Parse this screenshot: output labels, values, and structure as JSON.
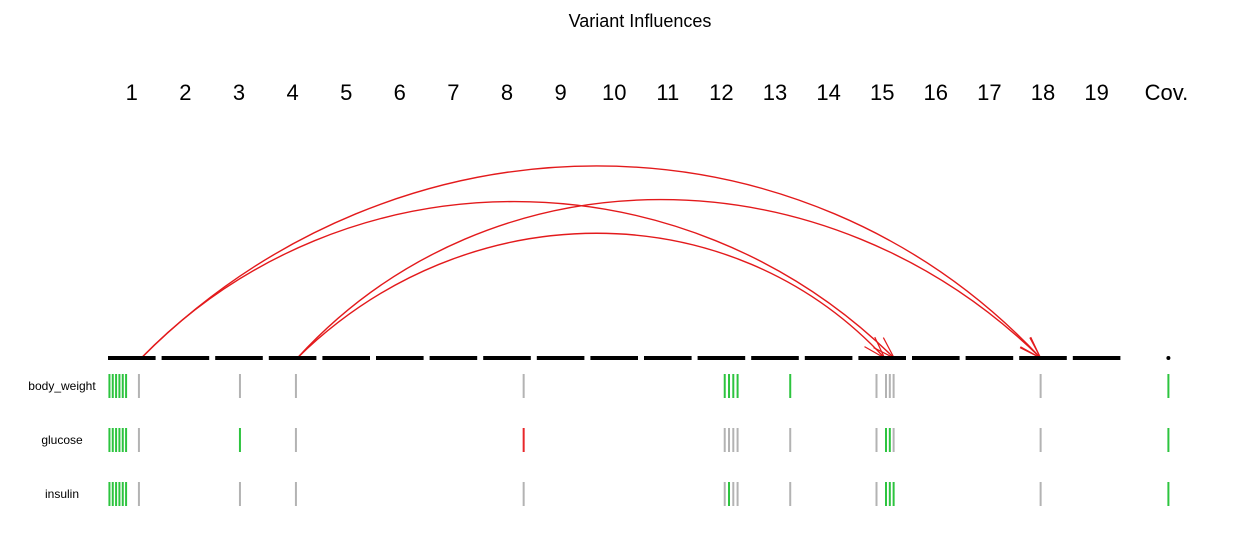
{
  "chart_data": {
    "type": "variant_influence_map",
    "title": "Variant Influences",
    "chromosomes": [
      "1",
      "2",
      "3",
      "4",
      "5",
      "6",
      "7",
      "8",
      "9",
      "10",
      "11",
      "12",
      "13",
      "14",
      "15",
      "16",
      "17",
      "18",
      "19",
      "Cov."
    ],
    "traits": [
      "body_weight",
      "glucose",
      "insulin"
    ],
    "colors": {
      "positive": "#2dc43f",
      "negative": "#e8262a",
      "neutral": "#b3b3b3",
      "arc": "#e31a1c",
      "axis": "#000000"
    },
    "legend": "none",
    "grid": false,
    "markers": [
      {
        "chr": "1",
        "pos": 0.03,
        "effects": [
          "positive",
          "positive",
          "positive"
        ]
      },
      {
        "chr": "1",
        "pos": 0.1,
        "effects": [
          "positive",
          "positive",
          "positive"
        ]
      },
      {
        "chr": "1",
        "pos": 0.17,
        "effects": [
          "positive",
          "positive",
          "positive"
        ]
      },
      {
        "chr": "1",
        "pos": 0.24,
        "effects": [
          "positive",
          "positive",
          "positive"
        ]
      },
      {
        "chr": "1",
        "pos": 0.31,
        "effects": [
          "positive",
          "positive",
          "positive"
        ]
      },
      {
        "chr": "1",
        "pos": 0.38,
        "effects": [
          "positive",
          "positive",
          "positive"
        ]
      },
      {
        "chr": "1",
        "pos": 0.65,
        "effects": [
          "neutral",
          "neutral",
          "neutral"
        ]
      },
      {
        "chr": "3",
        "pos": 0.52,
        "effects": [
          "neutral",
          "positive",
          "neutral"
        ]
      },
      {
        "chr": "4",
        "pos": 0.57,
        "effects": [
          "neutral",
          "neutral",
          "neutral"
        ]
      },
      {
        "chr": "8",
        "pos": 0.85,
        "effects": [
          "neutral",
          "negative",
          "neutral"
        ]
      },
      {
        "chr": "12",
        "pos": 0.57,
        "effects": [
          "positive",
          "neutral",
          "neutral"
        ]
      },
      {
        "chr": "12",
        "pos": 0.66,
        "effects": [
          "positive",
          "neutral",
          "positive"
        ]
      },
      {
        "chr": "12",
        "pos": 0.75,
        "effects": [
          "positive",
          "neutral",
          "neutral"
        ]
      },
      {
        "chr": "12",
        "pos": 0.84,
        "effects": [
          "positive",
          "neutral",
          "neutral"
        ]
      },
      {
        "chr": "13",
        "pos": 0.82,
        "effects": [
          "positive",
          "neutral",
          "neutral"
        ]
      },
      {
        "chr": "15",
        "pos": 0.38,
        "effects": [
          "neutral",
          "neutral",
          "neutral"
        ]
      },
      {
        "chr": "15",
        "pos": 0.58,
        "effects": [
          "neutral",
          "positive",
          "positive"
        ]
      },
      {
        "chr": "15",
        "pos": 0.66,
        "effects": [
          "neutral",
          "positive",
          "positive"
        ]
      },
      {
        "chr": "15",
        "pos": 0.74,
        "effects": [
          "neutral",
          "neutral",
          "positive"
        ]
      },
      {
        "chr": "18",
        "pos": 0.45,
        "effects": [
          "neutral",
          "neutral",
          "neutral"
        ]
      },
      {
        "chr": "Cov.",
        "pos": 0.5,
        "effects": [
          "positive",
          "positive",
          "positive"
        ]
      }
    ],
    "interactions": [
      {
        "source": {
          "chr": "1",
          "pos": 0.7
        },
        "target": {
          "chr": "15",
          "pos": 0.75
        },
        "apex_chr": "8",
        "apex_pos": 0.55
      },
      {
        "source": {
          "chr": "1",
          "pos": 0.7
        },
        "target": {
          "chr": "18",
          "pos": 0.45
        },
        "apex_chr": "10",
        "apex_pos": 0.3
      },
      {
        "source": {
          "chr": "4",
          "pos": 0.6
        },
        "target": {
          "chr": "15",
          "pos": 0.55
        },
        "apex_chr": "10",
        "apex_pos": 0.3
      },
      {
        "source": {
          "chr": "4",
          "pos": 0.6
        },
        "target": {
          "chr": "18",
          "pos": 0.45
        },
        "apex_chr": "11",
        "apex_pos": 0.1
      }
    ]
  }
}
